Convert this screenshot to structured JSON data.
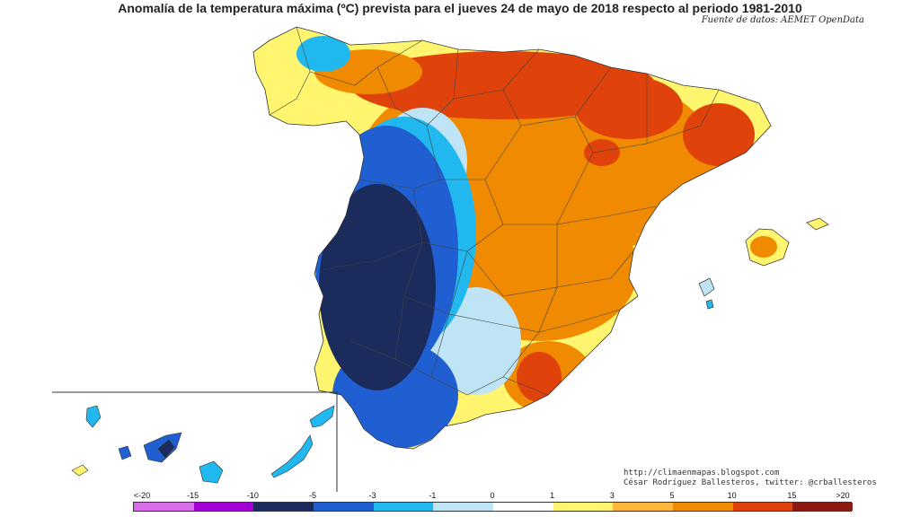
{
  "title": "Anomalía de la temperatura máxima (ºC) prevista para el jueves 24 de mayo de 2018 respecto al periodo 1981-2010",
  "source": "Fuente de datos: AEMET OpenData",
  "credit": {
    "line1": "http://climaenmapas.blogspot.com",
    "line2": "César Rodríguez Ballesteros, twitter: @crballesteros"
  },
  "legend": {
    "ticks": [
      "<-20",
      "-15",
      "-10",
      "-5",
      "-3",
      "-1",
      "0",
      "1",
      "3",
      "5",
      "10",
      "15",
      ">20"
    ],
    "colors": [
      "#d86fe8",
      "#a400d6",
      "#1a2b5c",
      "#1f5fd1",
      "#20b8ee",
      "#bfe4f6",
      "#ffffff",
      "#fff56e",
      "#ffb73b",
      "#f08a00",
      "#e0420c",
      "#8c1a10",
      "#6b3b0e"
    ]
  }
}
